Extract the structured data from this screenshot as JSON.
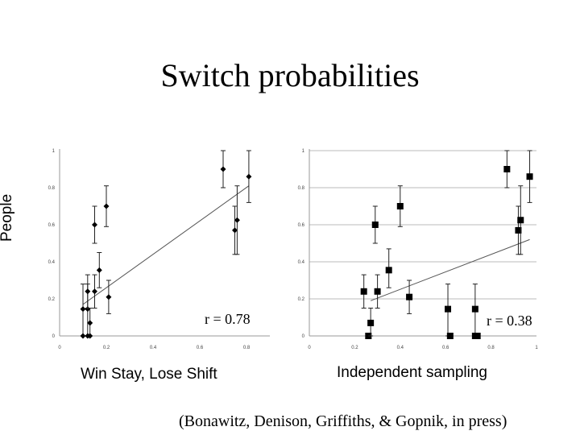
{
  "title": "Switch probabilities",
  "ylabel": "People",
  "citation": "(Bonawitz, Denison, Griffiths, & Gopnik, in press)",
  "chart_data": [
    {
      "type": "scatter",
      "marker": "diamond",
      "caption": "Win Stay, Lose Shift",
      "r_text": "r = 0.78",
      "xlim": [
        0,
        0.9
      ],
      "ylim": [
        0,
        1
      ],
      "xticks": [
        "0",
        "0.2",
        "0.4",
        "0.6",
        "0.8"
      ],
      "yticks": [
        "0",
        "0.2",
        "0.4",
        "0.6",
        "0.8",
        "1"
      ],
      "grid": false,
      "points": [
        {
          "x": 0.1,
          "y": 0.145,
          "lo": 0.0,
          "hi": 0.28
        },
        {
          "x": 0.12,
          "y": 0.145,
          "lo": 0.0,
          "hi": 0.28
        },
        {
          "x": 0.12,
          "y": 0.24,
          "lo": 0.15,
          "hi": 0.33
        },
        {
          "x": 0.15,
          "y": 0.24,
          "lo": 0.15,
          "hi": 0.33
        },
        {
          "x": 0.13,
          "y": 0.07,
          "lo": 0.0,
          "hi": 0.15
        },
        {
          "x": 0.1,
          "y": 0.0
        },
        {
          "x": 0.12,
          "y": 0.0
        },
        {
          "x": 0.13,
          "y": 0.0
        },
        {
          "x": 0.15,
          "y": 0.6,
          "lo": 0.5,
          "hi": 0.7
        },
        {
          "x": 0.17,
          "y": 0.355,
          "lo": 0.26,
          "hi": 0.45
        },
        {
          "x": 0.2,
          "y": 0.7,
          "lo": 0.59,
          "hi": 0.81
        },
        {
          "x": 0.21,
          "y": 0.21,
          "lo": 0.12,
          "hi": 0.3
        },
        {
          "x": 0.7,
          "y": 0.9,
          "lo": 0.8,
          "hi": 1.0
        },
        {
          "x": 0.75,
          "y": 0.57,
          "lo": 0.44,
          "hi": 0.7
        },
        {
          "x": 0.76,
          "y": 0.625,
          "lo": 0.44,
          "hi": 0.81
        },
        {
          "x": 0.81,
          "y": 0.86,
          "lo": 0.72,
          "hi": 1.0
        }
      ],
      "fit_line": [
        [
          0.1,
          0.17
        ],
        [
          0.81,
          0.81
        ]
      ]
    },
    {
      "type": "scatter",
      "marker": "square",
      "caption": "Independent sampling",
      "r_text": "r = 0.38",
      "xlim": [
        0,
        1
      ],
      "ylim": [
        0,
        1
      ],
      "xticks": [
        "0",
        "0.2",
        "0.4",
        "0.6",
        "0.8",
        "1"
      ],
      "yticks": [
        "0",
        "0.2",
        "0.4",
        "0.6",
        "0.8",
        "1"
      ],
      "grid": true,
      "points": [
        {
          "x": 0.24,
          "y": 0.24,
          "lo": 0.15,
          "hi": 0.33
        },
        {
          "x": 0.26,
          "y": 0.0
        },
        {
          "x": 0.27,
          "y": 0.07,
          "lo": 0.0,
          "hi": 0.15
        },
        {
          "x": 0.29,
          "y": 0.6,
          "lo": 0.5,
          "hi": 0.7
        },
        {
          "x": 0.3,
          "y": 0.24,
          "lo": 0.15,
          "hi": 0.33
        },
        {
          "x": 0.35,
          "y": 0.355,
          "lo": 0.26,
          "hi": 0.47
        },
        {
          "x": 0.4,
          "y": 0.7,
          "lo": 0.59,
          "hi": 0.81
        },
        {
          "x": 0.44,
          "y": 0.21,
          "lo": 0.12,
          "hi": 0.3
        },
        {
          "x": 0.61,
          "y": 0.145,
          "lo": 0.0,
          "hi": 0.28
        },
        {
          "x": 0.62,
          "y": 0.0
        },
        {
          "x": 0.73,
          "y": 0.145,
          "lo": 0.0,
          "hi": 0.28
        },
        {
          "x": 0.73,
          "y": 0.0
        },
        {
          "x": 0.74,
          "y": 0.0
        },
        {
          "x": 0.87,
          "y": 0.9,
          "lo": 0.8,
          "hi": 1.0
        },
        {
          "x": 0.92,
          "y": 0.57,
          "lo": 0.44,
          "hi": 0.7
        },
        {
          "x": 0.93,
          "y": 0.625,
          "lo": 0.44,
          "hi": 0.81
        },
        {
          "x": 0.97,
          "y": 0.86,
          "lo": 0.72,
          "hi": 1.0
        }
      ],
      "fit_line": [
        [
          0.27,
          0.19
        ],
        [
          0.97,
          0.52
        ]
      ]
    }
  ]
}
